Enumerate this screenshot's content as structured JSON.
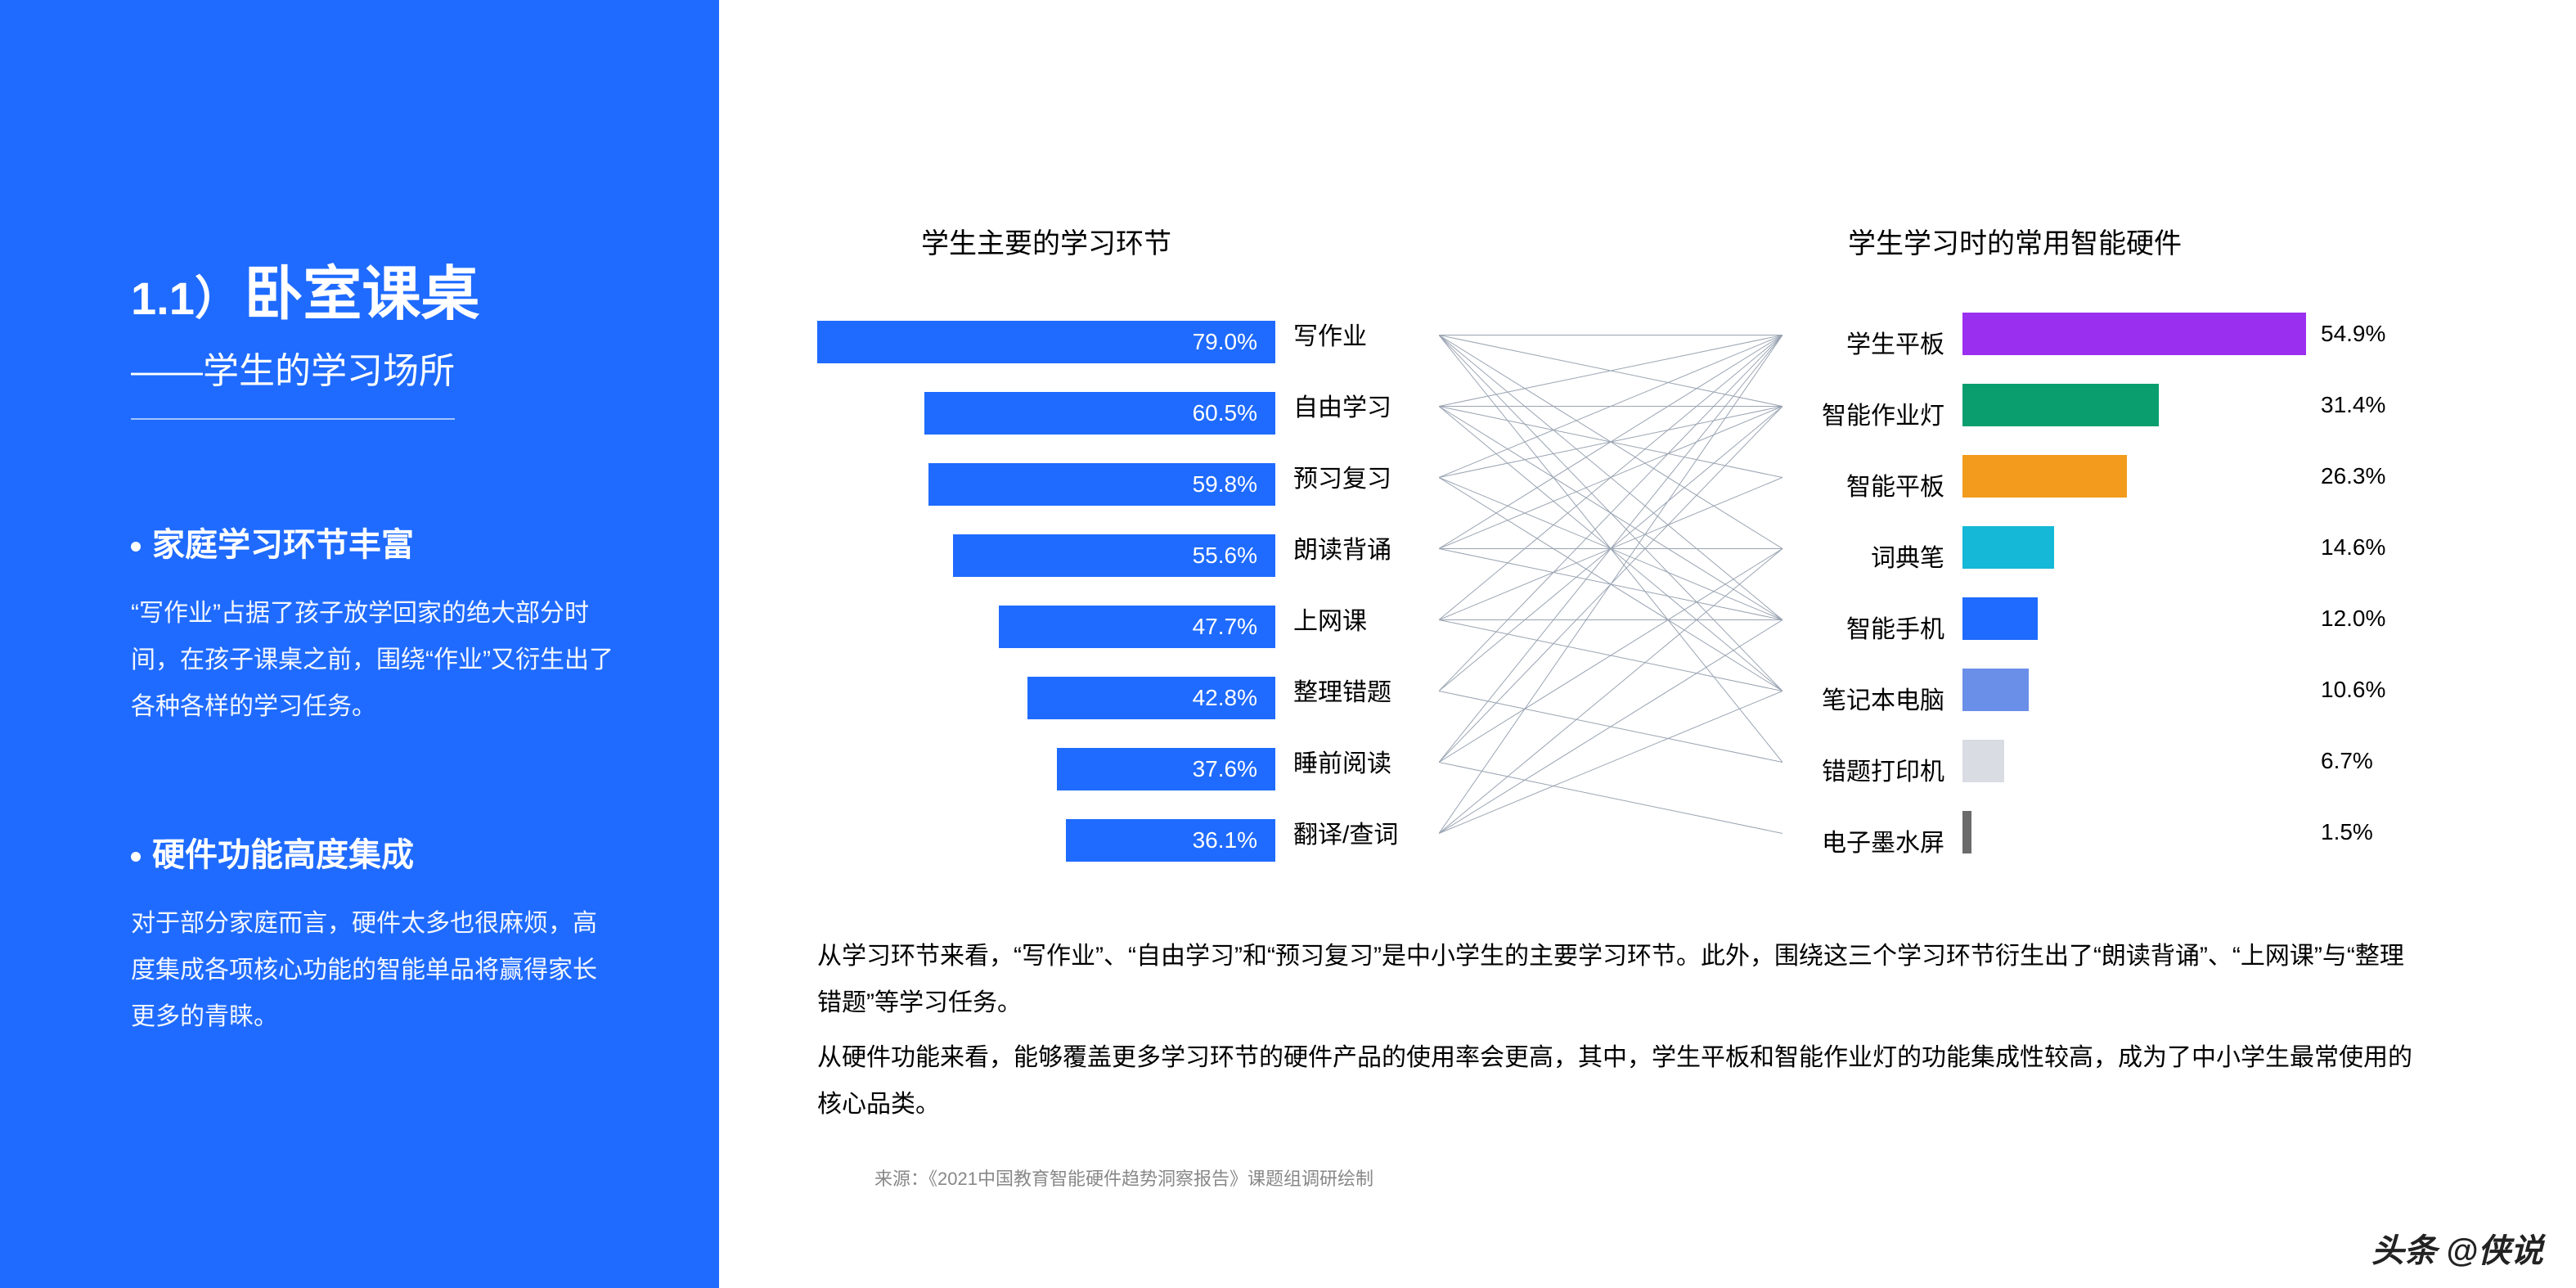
{
  "sidebar": {
    "prefix": "1.1）",
    "title": "卧室课桌",
    "subtitle": "——学生的学习场所",
    "points": [
      {
        "title": "家庭学习环节丰富",
        "body": "“写作业”占据了孩子放学回家的绝大部分时间，在孩子课桌之前，围绕“作业”又衍生出了各种各样的学习任务。"
      },
      {
        "title": "硬件功能高度集成",
        "body": "对于部分家庭而言，硬件太多也很麻烦，高度集成各项核心功能的智能单品将赢得家长更多的青睐。"
      }
    ],
    "bg_color": "#1f6bff"
  },
  "left_chart": {
    "title": "学生主要的学习环节",
    "bar_color": "#1f6bff",
    "text_color": "#ffffff",
    "max_value": 79.0,
    "items": [
      {
        "label": "写作业",
        "value": 79.0
      },
      {
        "label": "自由学习",
        "value": 60.5
      },
      {
        "label": "预习复习",
        "value": 59.8
      },
      {
        "label": "朗读背诵",
        "value": 55.6
      },
      {
        "label": "上网课",
        "value": 47.7
      },
      {
        "label": "整理错题",
        "value": 42.8
      },
      {
        "label": "睡前阅读",
        "value": 37.6
      },
      {
        "label": "翻译/查词",
        "value": 36.1
      }
    ]
  },
  "right_chart": {
    "title": "学生学习时的常用智能硬件",
    "max_value": 54.9,
    "items": [
      {
        "label": "学生平板",
        "value": 54.9,
        "color": "#9b2ff0"
      },
      {
        "label": "智能作业灯",
        "value": 31.4,
        "color": "#0a9e6f"
      },
      {
        "label": "智能平板",
        "value": 26.3,
        "color": "#f29b1c"
      },
      {
        "label": "词典笔",
        "value": 14.6,
        "color": "#15b8d6"
      },
      {
        "label": "智能手机",
        "value": 12.0,
        "color": "#1f6bff"
      },
      {
        "label": "笔记本电脑",
        "value": 10.6,
        "color": "#6a8fe8"
      },
      {
        "label": "错题打印机",
        "value": 6.7,
        "color": "#d9dce3"
      },
      {
        "label": "电子墨水屏",
        "value": 1.5,
        "color": "#6b6b6b"
      }
    ]
  },
  "connections": {
    "line_color": "#9aa4b2",
    "line_width": 1,
    "edges": [
      [
        0,
        0
      ],
      [
        0,
        1
      ],
      [
        0,
        3
      ],
      [
        0,
        4
      ],
      [
        0,
        5
      ],
      [
        0,
        6
      ],
      [
        1,
        0
      ],
      [
        1,
        1
      ],
      [
        1,
        2
      ],
      [
        1,
        4
      ],
      [
        1,
        5
      ],
      [
        2,
        0
      ],
      [
        2,
        1
      ],
      [
        2,
        4
      ],
      [
        2,
        5
      ],
      [
        3,
        0
      ],
      [
        3,
        1
      ],
      [
        3,
        3
      ],
      [
        3,
        4
      ],
      [
        4,
        0
      ],
      [
        4,
        2
      ],
      [
        4,
        4
      ],
      [
        4,
        5
      ],
      [
        5,
        0
      ],
      [
        5,
        1
      ],
      [
        5,
        6
      ],
      [
        6,
        0
      ],
      [
        6,
        1
      ],
      [
        6,
        3
      ],
      [
        6,
        7
      ],
      [
        7,
        0
      ],
      [
        7,
        3
      ],
      [
        7,
        4
      ],
      [
        7,
        5
      ]
    ]
  },
  "description": {
    "p1": "从学习环节来看，“写作业”、“自由学习”和“预习复习”是中小学生的主要学习环节。此外，围绕这三个学习环节衍生出了“朗读背诵”、“上网课”与“整理错题”等学习任务。",
    "p2": "从硬件功能来看，能够覆盖更多学习环节的硬件产品的使用率会更高，其中，学生平板和智能作业灯的功能集成性较高，成为了中小学生最常使用的核心品类。"
  },
  "source": "来源：《2021中国教育智能硬件趋势洞察报告》课题组调研绘制",
  "watermark": "头条 @侠说"
}
